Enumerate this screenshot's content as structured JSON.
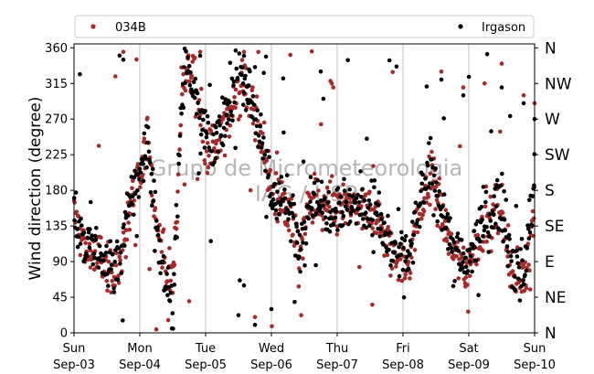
{
  "chart_data": {
    "type": "scatter",
    "ylabel": "Wind direction (degree)",
    "ylim": [
      0,
      365
    ],
    "yticks": [
      0,
      45,
      90,
      135,
      180,
      225,
      270,
      315,
      360
    ],
    "compass_labels": [
      {
        "value": 0,
        "label": "N"
      },
      {
        "value": 45,
        "label": "NE"
      },
      {
        "value": 90,
        "label": "E"
      },
      {
        "value": 135,
        "label": "SE"
      },
      {
        "value": 180,
        "label": "S"
      },
      {
        "value": 225,
        "label": "SW"
      },
      {
        "value": 270,
        "label": "W"
      },
      {
        "value": 315,
        "label": "NW"
      },
      {
        "value": 360,
        "label": "N"
      }
    ],
    "xlim": [
      "2023-09-03",
      "2023-09-10"
    ],
    "xticks": [
      {
        "day": "Sun",
        "date": "Sep-03"
      },
      {
        "day": "Mon",
        "date": "Sep-04"
      },
      {
        "day": "Tue",
        "date": "Sep-05"
      },
      {
        "day": "Wed",
        "date": "Sep-06"
      },
      {
        "day": "Thu",
        "date": "Sep-07"
      },
      {
        "day": "Fri",
        "date": "Sep-08"
      },
      {
        "day": "Sat",
        "date": "Sep-09"
      },
      {
        "day": "Sun",
        "date": "Sep-10"
      }
    ],
    "grid": "vertical",
    "legend": {
      "placement": "top",
      "entries": [
        "034B",
        "Irgason"
      ]
    },
    "watermark": [
      "Grupo de Micrometeorologia",
      "IAG / USP"
    ],
    "colors": {
      "034B": "#a52a2a",
      "Irgason": "#000000"
    },
    "series": [
      {
        "name": "034B",
        "trend": [
          [
            "2023-09-03 00:00",
            150
          ],
          [
            "2023-09-03 04:00",
            108
          ],
          [
            "2023-09-03 08:00",
            95
          ],
          [
            "2023-09-03 12:00",
            85
          ],
          [
            "2023-09-03 16:00",
            70
          ],
          [
            "2023-09-03 20:00",
            150
          ],
          [
            "2023-09-04 00:00",
            190
          ],
          [
            "2023-09-04 03:00",
            250
          ],
          [
            "2023-09-04 06:00",
            140
          ],
          [
            "2023-09-04 09:00",
            90
          ],
          [
            "2023-09-04 12:00",
            60
          ],
          [
            "2023-09-04 16:00",
            330
          ],
          [
            "2023-09-04 20:00",
            330
          ],
          [
            "2023-09-05 00:00",
            240
          ],
          [
            "2023-09-05 04:00",
            230
          ],
          [
            "2023-09-05 08:00",
            265
          ],
          [
            "2023-09-05 12:00",
            320
          ],
          [
            "2023-09-05 16:00",
            300
          ],
          [
            "2023-09-05 20:00",
            260
          ],
          [
            "2023-09-06 00:00",
            180
          ],
          [
            "2023-09-06 04:00",
            165
          ],
          [
            "2023-09-06 08:00",
            140
          ],
          [
            "2023-09-06 10:00",
            90
          ],
          [
            "2023-09-06 14:00",
            170
          ],
          [
            "2023-09-06 20:00",
            155
          ],
          [
            "2023-09-07 02:00",
            160
          ],
          [
            "2023-09-07 08:00",
            155
          ],
          [
            "2023-09-07 14:00",
            150
          ],
          [
            "2023-09-07 20:00",
            100
          ],
          [
            "2023-09-08 02:00",
            85
          ],
          [
            "2023-09-08 06:00",
            150
          ],
          [
            "2023-09-08 10:00",
            200
          ],
          [
            "2023-09-08 14:00",
            160
          ],
          [
            "2023-09-08 18:00",
            100
          ],
          [
            "2023-09-09 00:00",
            80
          ],
          [
            "2023-09-09 04:00",
            130
          ],
          [
            "2023-09-09 08:00",
            140
          ],
          [
            "2023-09-09 12:00",
            160
          ],
          [
            "2023-09-09 16:00",
            70
          ],
          [
            "2023-09-09 20:00",
            70
          ],
          [
            "2023-09-10 00:00",
            160
          ]
        ],
        "scatter_outliers": [
          [
            "2023-09-03 18:00",
            355
          ],
          [
            "2023-09-04 22:00",
            355
          ],
          [
            "2023-09-05 14:00",
            355
          ],
          [
            "2023-09-06 22:00",
            315
          ],
          [
            "2023-09-08 14:00",
            330
          ],
          [
            "2023-09-08 22:00",
            310
          ],
          [
            "2023-09-09 12:00",
            340
          ],
          [
            "2023-09-09 20:00",
            300
          ],
          [
            "2023-09-10 00:00",
            290
          ],
          [
            "2023-09-04 18:00",
            40
          ],
          [
            "2023-09-05 18:00",
            20
          ]
        ]
      },
      {
        "name": "Irgason",
        "trend": [
          [
            "2023-09-03 00:00",
            155
          ],
          [
            "2023-09-03 04:00",
            105
          ],
          [
            "2023-09-03 08:00",
            100
          ],
          [
            "2023-09-03 12:00",
            90
          ],
          [
            "2023-09-03 16:00",
            80
          ],
          [
            "2023-09-03 20:00",
            160
          ],
          [
            "2023-09-04 00:00",
            200
          ],
          [
            "2023-09-04 03:00",
            240
          ],
          [
            "2023-09-04 06:00",
            130
          ],
          [
            "2023-09-04 09:00",
            70
          ],
          [
            "2023-09-04 12:00",
            40
          ],
          [
            "2023-09-04 16:00",
            340
          ],
          [
            "2023-09-04 20:00",
            320
          ],
          [
            "2023-09-05 00:00",
            250
          ],
          [
            "2023-09-05 04:00",
            235
          ],
          [
            "2023-09-05 08:00",
            280
          ],
          [
            "2023-09-05 12:00",
            330
          ],
          [
            "2023-09-05 16:00",
            310
          ],
          [
            "2023-09-05 20:00",
            250
          ],
          [
            "2023-09-06 00:00",
            175
          ],
          [
            "2023-09-06 04:00",
            170
          ],
          [
            "2023-09-06 08:00",
            145
          ],
          [
            "2023-09-06 10:00",
            100
          ],
          [
            "2023-09-06 14:00",
            175
          ],
          [
            "2023-09-06 20:00",
            160
          ],
          [
            "2023-09-07 02:00",
            165
          ],
          [
            "2023-09-07 08:00",
            160
          ],
          [
            "2023-09-07 14:00",
            155
          ],
          [
            "2023-09-07 20:00",
            105
          ],
          [
            "2023-09-08 02:00",
            90
          ],
          [
            "2023-09-08 06:00",
            160
          ],
          [
            "2023-09-08 10:00",
            210
          ],
          [
            "2023-09-08 14:00",
            165
          ],
          [
            "2023-09-08 18:00",
            105
          ],
          [
            "2023-09-09 00:00",
            85
          ],
          [
            "2023-09-09 04:00",
            140
          ],
          [
            "2023-09-09 08:00",
            150
          ],
          [
            "2023-09-09 12:00",
            170
          ],
          [
            "2023-09-09 16:00",
            80
          ],
          [
            "2023-09-09 20:00",
            75
          ],
          [
            "2023-09-10 00:00",
            190
          ]
        ],
        "scatter_outliers": [
          [
            "2023-09-03 18:00",
            345
          ],
          [
            "2023-09-04 22:00",
            350
          ],
          [
            "2023-09-05 14:00",
            350
          ],
          [
            "2023-09-06 18:00",
            330
          ],
          [
            "2023-09-08 14:00",
            320
          ],
          [
            "2023-09-08 22:00",
            300
          ],
          [
            "2023-09-09 12:00",
            310
          ],
          [
            "2023-09-09 20:00",
            290
          ],
          [
            "2023-09-10 00:00",
            270
          ],
          [
            "2023-09-05 18:00",
            10
          ],
          [
            "2023-09-06 00:00",
            30
          ],
          [
            "2023-09-05 14:00",
            60
          ]
        ]
      }
    ]
  }
}
